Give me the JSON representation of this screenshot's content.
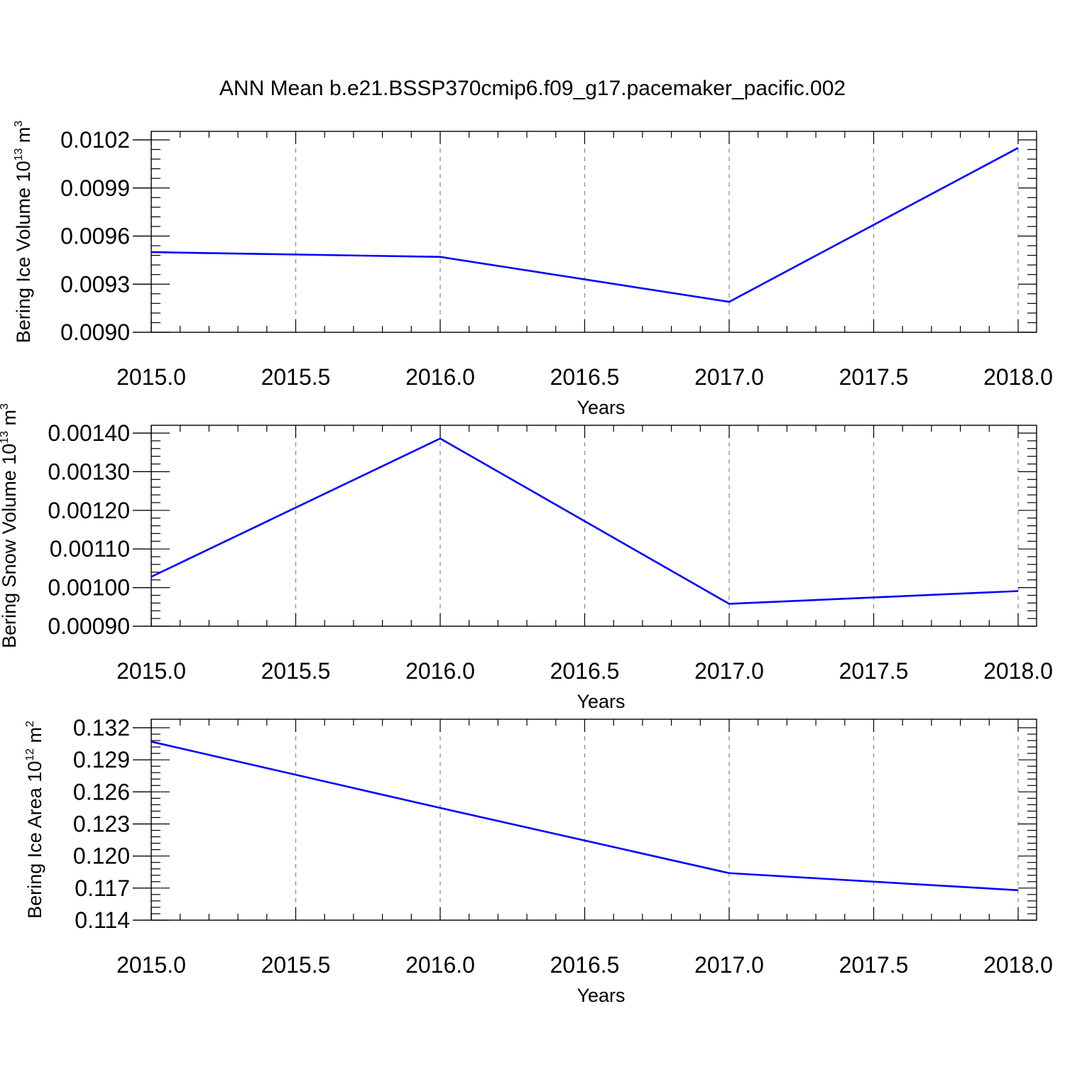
{
  "title": "ANN Mean b.e21.BSSP370cmip6.f09_g17.pacemaker_pacific.002",
  "colors": {
    "line": "#0000ff",
    "axis": "#000000",
    "grid": "#888888"
  },
  "chart_data": [
    {
      "type": "line",
      "xlabel": "Years",
      "ylabel": {
        "main": "Bering Ice Volume 10",
        "exp": "13",
        "mid": " m",
        "unit_exp": "3"
      },
      "xlim": [
        2015.0,
        2018.0
      ],
      "ylim": [
        0.009,
        0.0102
      ],
      "xticks": [
        "2015.0",
        "2015.5",
        "2016.0",
        "2016.5",
        "2017.0",
        "2017.5",
        "2018.0"
      ],
      "yticks": [
        "0.0090",
        "0.0093",
        "0.0096",
        "0.0099",
        "0.0102"
      ],
      "x": [
        2015,
        2016,
        2017,
        2018
      ],
      "y": [
        0.0095,
        0.00947,
        0.00919,
        0.01015
      ],
      "grid": "vertical-dashed"
    },
    {
      "type": "line",
      "xlabel": "Years",
      "ylabel": {
        "main": "Bering Snow Volume 10",
        "exp": "13",
        "mid": " m",
        "unit_exp": "3"
      },
      "xlim": [
        2015.0,
        2018.0
      ],
      "ylim": [
        0.0009,
        0.0014
      ],
      "xticks": [
        "2015.0",
        "2015.5",
        "2016.0",
        "2016.5",
        "2017.0",
        "2017.5",
        "2018.0"
      ],
      "yticks": [
        "0.00090",
        "0.00100",
        "0.00110",
        "0.00120",
        "0.00130",
        "0.00140"
      ],
      "x": [
        2015,
        2016,
        2017,
        2018
      ],
      "y": [
        0.001028,
        0.001386,
        0.000958,
        0.000991
      ],
      "grid": "vertical-dashed"
    },
    {
      "type": "line",
      "xlabel": "Years",
      "ylabel": {
        "main": "Bering Ice Area 10",
        "exp": "12",
        "mid": " m",
        "unit_exp": "2"
      },
      "xlim": [
        2015.0,
        2018.0
      ],
      "ylim": [
        0.114,
        0.132
      ],
      "xticks": [
        "2015.0",
        "2015.5",
        "2016.0",
        "2016.5",
        "2017.0",
        "2017.5",
        "2018.0"
      ],
      "yticks": [
        "0.114",
        "0.117",
        "0.120",
        "0.123",
        "0.126",
        "0.129",
        "0.132"
      ],
      "x": [
        2015,
        2016,
        2017,
        2018
      ],
      "y": [
        0.1307,
        0.1245,
        0.1184,
        0.1168
      ],
      "grid": "vertical-dashed"
    }
  ]
}
